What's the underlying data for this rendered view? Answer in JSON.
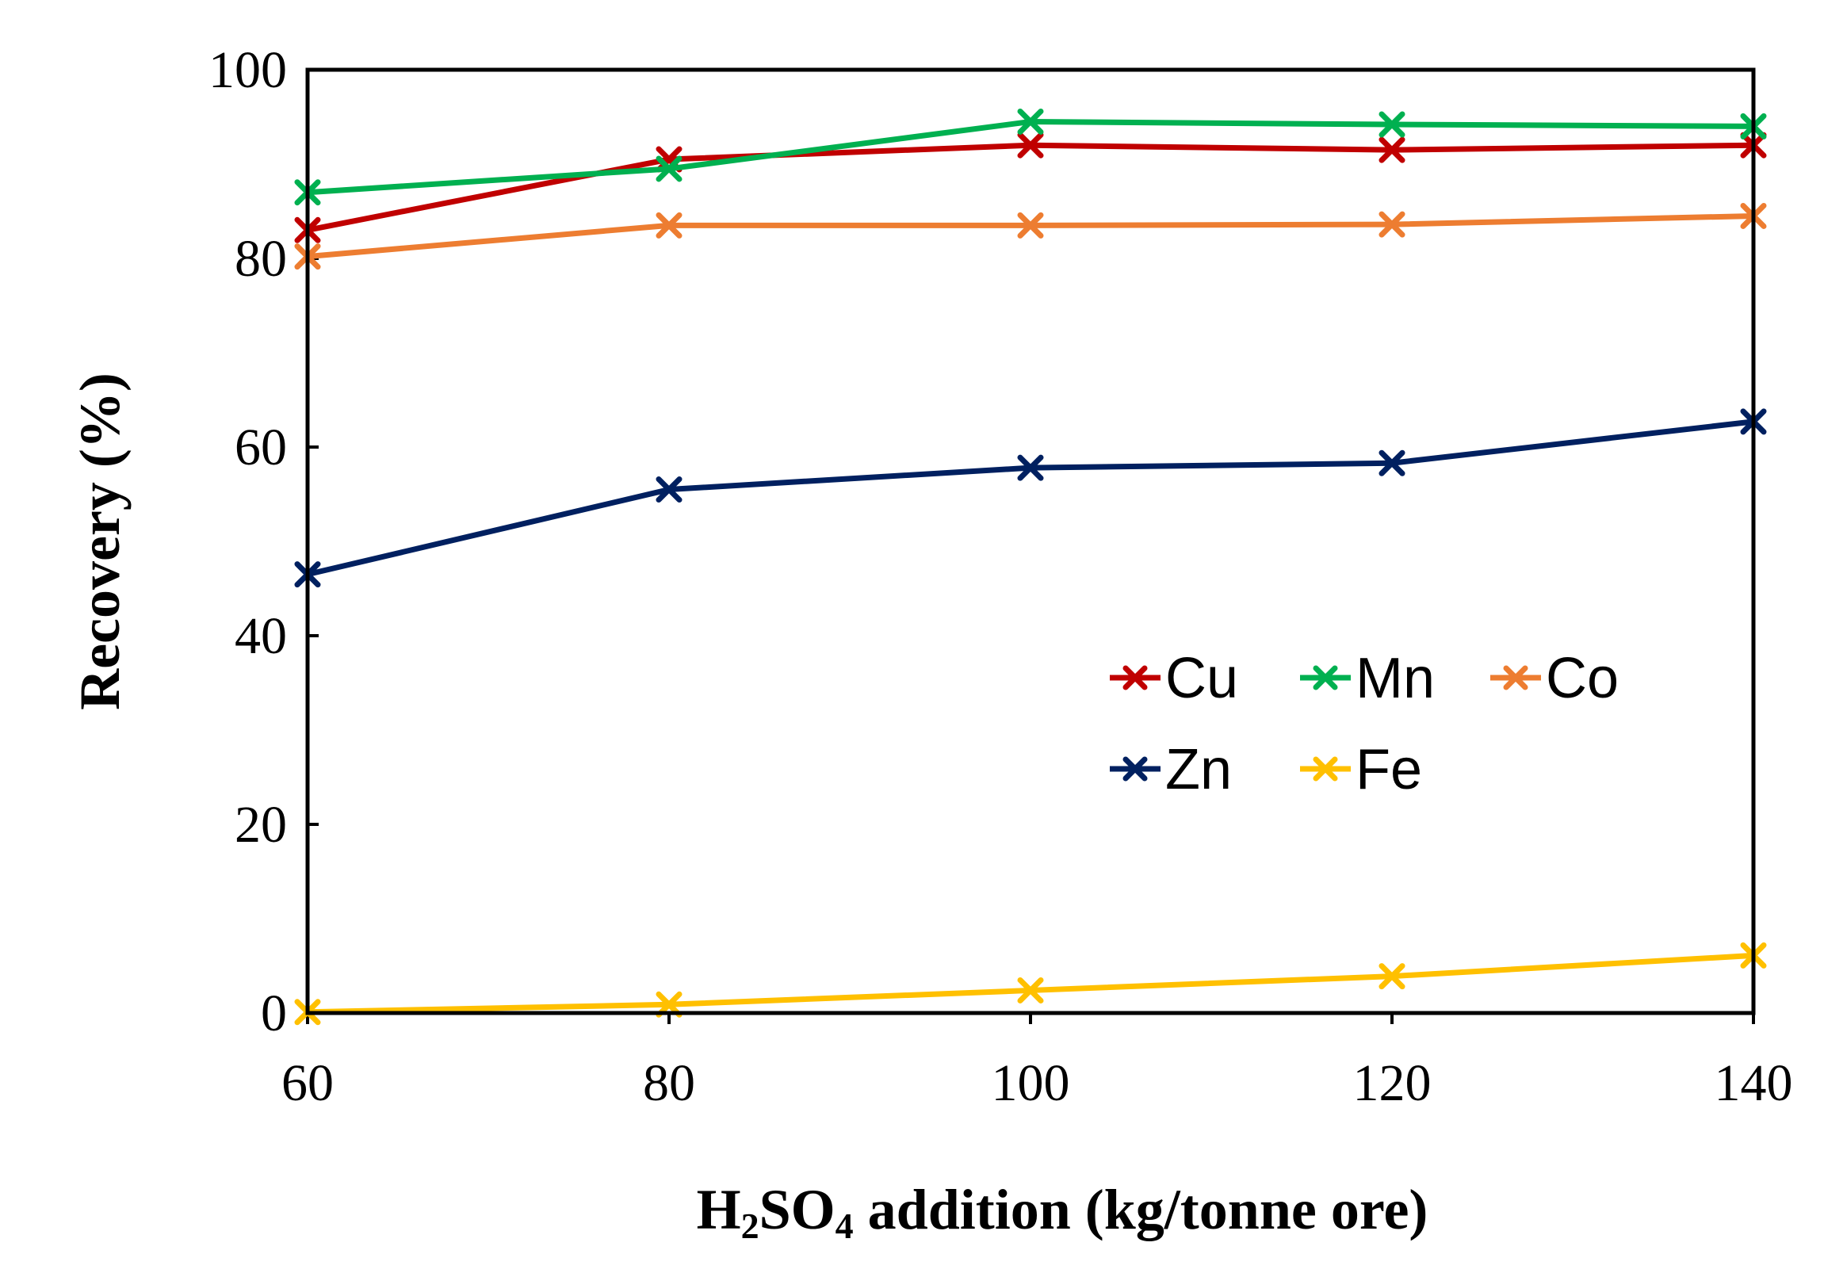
{
  "chart_data": {
    "type": "line",
    "title": "",
    "xlabel_parts": [
      "H",
      "2",
      "SO",
      "4",
      " addition (kg/tonne ore)"
    ],
    "ylabel": "Recovery (%)",
    "x": [
      60,
      80,
      100,
      120,
      140
    ],
    "xlim": [
      60,
      140
    ],
    "ylim": [
      0,
      100
    ],
    "xticks": [
      60,
      80,
      100,
      120,
      140
    ],
    "yticks": [
      0,
      20,
      40,
      60,
      80,
      100
    ],
    "grid": false,
    "legend_position": "center-right",
    "series": [
      {
        "name": "Cu",
        "color": "#c00000",
        "values": [
          83.0,
          90.5,
          92.0,
          91.5,
          92.0
        ]
      },
      {
        "name": "Mn",
        "color": "#00b050",
        "values": [
          87.0,
          89.5,
          94.5,
          94.2,
          94.0
        ]
      },
      {
        "name": "Co",
        "color": "#ed7d31",
        "values": [
          80.2,
          83.5,
          83.5,
          83.6,
          84.5
        ]
      },
      {
        "name": "Zn",
        "color": "#002060",
        "values": [
          46.5,
          55.5,
          57.8,
          58.3,
          62.7
        ]
      },
      {
        "name": "Fe",
        "color": "#ffc000",
        "values": [
          0.1,
          0.9,
          2.4,
          3.9,
          6.1
        ]
      }
    ]
  }
}
